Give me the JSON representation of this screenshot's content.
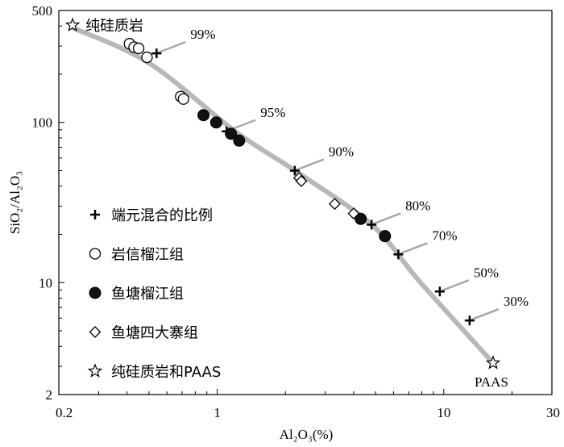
{
  "chart_data": {
    "type": "scatter",
    "xscale": "log",
    "yscale": "log",
    "xlim": [
      0.2,
      30
    ],
    "ylim": [
      2,
      500
    ],
    "xlabel": "Al₂O₃(%)",
    "ylabel": "SiO₂/Al₂O₃",
    "x_ticks": [
      {
        "value": 0.2,
        "label": "0.2"
      },
      {
        "value": 1,
        "label": "1"
      },
      {
        "value": 10,
        "label": "10"
      },
      {
        "value": 30,
        "label": "30"
      }
    ],
    "y_ticks": [
      {
        "value": 2,
        "label": "2"
      },
      {
        "value": 10,
        "label": "10"
      },
      {
        "value": 100,
        "label": "100"
      },
      {
        "value": 500,
        "label": "500"
      }
    ],
    "mixing_curve": [
      {
        "x": 0.23,
        "y": 390
      },
      {
        "x": 0.5,
        "y": 235
      },
      {
        "x": 1.2,
        "y": 88
      },
      {
        "x": 2.2,
        "y": 50
      },
      {
        "x": 4.8,
        "y": 23
      },
      {
        "x": 7.9,
        "y": 10
      },
      {
        "x": 16.5,
        "y": 3.15
      }
    ],
    "series": [
      {
        "name": "端元混合的比例",
        "marker": "plus",
        "points": [
          {
            "x": 0.54,
            "y": 270,
            "label": "99%"
          },
          {
            "x": 1.1,
            "y": 88,
            "label": "95%"
          },
          {
            "x": 2.2,
            "y": 50,
            "label": "90%"
          },
          {
            "x": 4.8,
            "y": 23,
            "label": "80%"
          },
          {
            "x": 6.3,
            "y": 15,
            "label": "70%"
          },
          {
            "x": 9.6,
            "y": 8.8,
            "label": "50%"
          },
          {
            "x": 13.0,
            "y": 5.8,
            "label": "30%"
          }
        ]
      },
      {
        "name": "岩信榴江组",
        "marker": "circle-open",
        "points": [
          {
            "x": 0.41,
            "y": 310
          },
          {
            "x": 0.43,
            "y": 295
          },
          {
            "x": 0.45,
            "y": 290
          },
          {
            "x": 0.49,
            "y": 255
          },
          {
            "x": 0.69,
            "y": 145
          },
          {
            "x": 0.71,
            "y": 140
          }
        ]
      },
      {
        "name": "鱼塘榴江组",
        "marker": "circle-filled",
        "points": [
          {
            "x": 0.87,
            "y": 111
          },
          {
            "x": 0.99,
            "y": 100
          },
          {
            "x": 1.15,
            "y": 85
          },
          {
            "x": 1.25,
            "y": 77
          },
          {
            "x": 4.3,
            "y": 25
          },
          {
            "x": 5.5,
            "y": 19.5
          }
        ]
      },
      {
        "name": "鱼塘四大寨组",
        "marker": "diamond-open",
        "points": [
          {
            "x": 2.3,
            "y": 45
          },
          {
            "x": 2.35,
            "y": 43
          },
          {
            "x": 3.3,
            "y": 31
          },
          {
            "x": 4.0,
            "y": 27
          }
        ]
      },
      {
        "name": "纯硅质岩和PAAS",
        "marker": "star-open",
        "points": [
          {
            "x": 0.23,
            "y": 405,
            "label": "纯硅质岩"
          },
          {
            "x": 16.5,
            "y": 3.15,
            "label": "PAAS"
          }
        ]
      }
    ],
    "legend": {
      "position": "bottom-left",
      "entries": [
        {
          "marker": "plus",
          "label": "端元混合的比例"
        },
        {
          "marker": "circle-open",
          "label": "岩信榴江组"
        },
        {
          "marker": "circle-filled",
          "label": "鱼塘榴江组"
        },
        {
          "marker": "diamond-open",
          "label": "鱼塘四大寨组"
        },
        {
          "marker": "star-open",
          "label": "纯硅质岩和PAAS"
        }
      ]
    },
    "colors": {
      "curve": "#b8b8b8",
      "leader": "#a8a8a8",
      "marker": "#000000"
    }
  }
}
